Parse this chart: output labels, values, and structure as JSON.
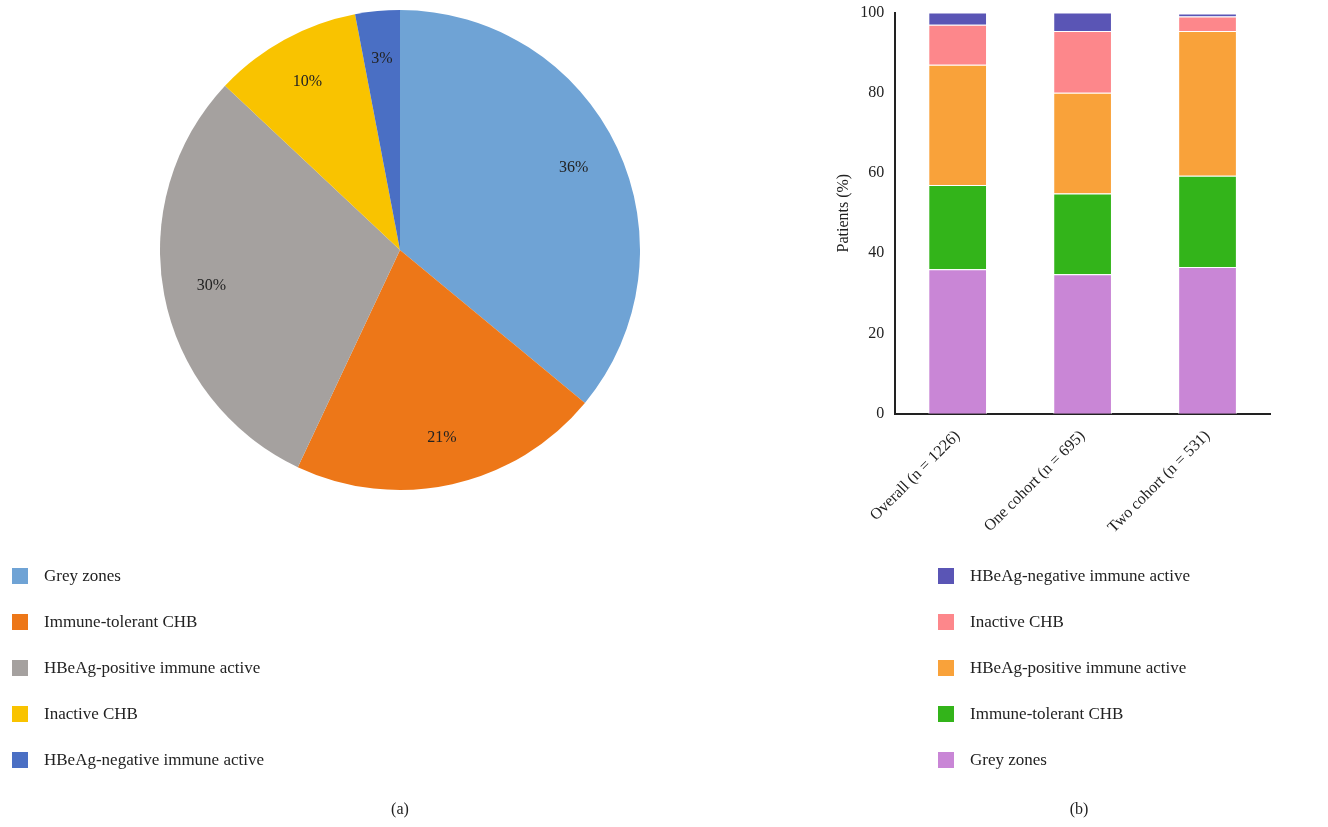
{
  "chart_data": [
    {
      "type": "pie",
      "categories": [
        "Grey zones",
        "Immune-tolerant CHB",
        "HBeAg-positive immune active",
        "Inactive CHB",
        "HBeAg-negative immune active"
      ],
      "values": [
        36,
        21,
        30,
        10,
        3
      ],
      "colors": [
        "#6fa3d5",
        "#ed7718",
        "#a5a19f",
        "#f9c300",
        "#4a6fc4"
      ],
      "value_labels": [
        "36%",
        "21%",
        "30%",
        "10%",
        "3%"
      ],
      "legend": "bottom",
      "annotations": [
        "(a)"
      ]
    },
    {
      "type": "bar",
      "stacked": true,
      "categories": [
        "Overall (n = 1226)",
        "One cohort (n = 695)",
        "Two cohort (n = 531)"
      ],
      "series": [
        {
          "name": "Grey zones",
          "color": "#c986d6",
          "values": [
            36,
            34.8,
            36.6
          ]
        },
        {
          "name": "Immune-tolerant CHB",
          "color": "#33b41a",
          "values": [
            21,
            20.1,
            22.7
          ]
        },
        {
          "name": "HBeAg-positive immune active",
          "color": "#f9a23a",
          "values": [
            30,
            25.1,
            36.1
          ]
        },
        {
          "name": "Inactive CHB",
          "color": "#fd878b",
          "values": [
            10,
            15.4,
            3.6
          ]
        },
        {
          "name": "HBeAg-negative immune active",
          "color": "#5a55b5",
          "values": [
            3,
            4.6,
            0.8
          ]
        }
      ],
      "ylabel": "Patients (%)",
      "ylim": [
        0,
        100
      ],
      "yticks": [
        0,
        20,
        40,
        60,
        80,
        100
      ],
      "legend": "bottom",
      "annotations": [
        "(b)"
      ]
    }
  ]
}
